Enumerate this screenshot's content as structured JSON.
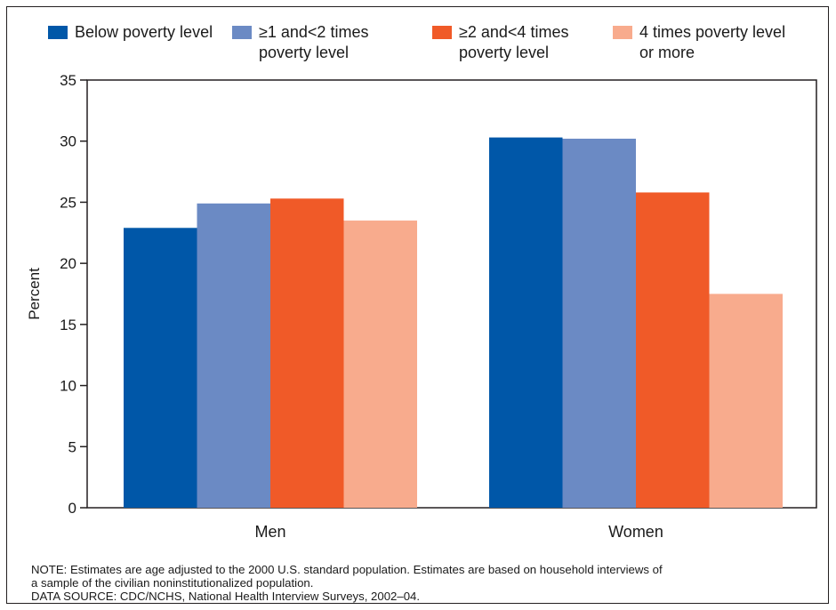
{
  "colors": {
    "below": "#0057a8",
    "one_to_two": "#6b8ac4",
    "two_to_four": "#f05a28",
    "four_plus": "#f8ab8d"
  },
  "chart_data": {
    "type": "bar",
    "categories": [
      "Men",
      "Women"
    ],
    "series": [
      {
        "name": "Below poverty level",
        "values": [
          22.9,
          30.3
        ]
      },
      {
        "name": "≥1 and<2 times poverty level",
        "values": [
          24.9,
          30.2
        ]
      },
      {
        "name": "≥2 and<4 times poverty level",
        "values": [
          25.3,
          25.8
        ]
      },
      {
        "name": "4 times poverty level or more",
        "values": [
          23.5,
          17.5
        ]
      }
    ],
    "legend_lines": [
      [
        "Below poverty level"
      ],
      [
        "≥1 and<2 times",
        "poverty level"
      ],
      [
        "≥2 and<4 times",
        "poverty level"
      ],
      [
        "4 times poverty level",
        "or more"
      ]
    ],
    "ylabel": "Percent",
    "xlabel": "",
    "ylim": [
      0,
      35
    ],
    "yticks": [
      0,
      5,
      10,
      15,
      20,
      25,
      30,
      35
    ],
    "grid": false,
    "legend_position": "top"
  },
  "notes": {
    "line1": "NOTE: Estimates are age adjusted to the 2000 U.S. standard population. Estimates are based on household interviews of",
    "line2": "a sample of the civilian noninstitutionalized population.",
    "source": "DATA SOURCE: CDC/NCHS, National Health Interview Surveys, 2002–04."
  }
}
